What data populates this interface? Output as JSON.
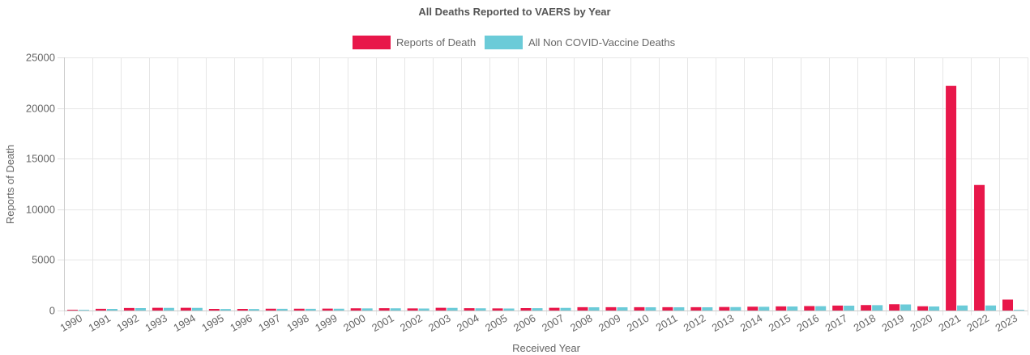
{
  "chart_data": {
    "type": "bar",
    "title": "All Deaths Reported to VAERS by Year",
    "xlabel": "Received Year",
    "ylabel": "Reports of Death",
    "ylim": [
      0,
      25000
    ],
    "yticks": [
      "0",
      "5000",
      "10000",
      "15000",
      "20000",
      "25000"
    ],
    "grid": true,
    "legend_position": "top",
    "categories": [
      "1990",
      "1991",
      "1992",
      "1993",
      "1994",
      "1995",
      "1996",
      "1997",
      "1998",
      "1999",
      "2000",
      "2001",
      "2002",
      "2003",
      "2004",
      "2005",
      "2006",
      "2007",
      "2008",
      "2009",
      "2010",
      "2011",
      "2012",
      "2013",
      "2014",
      "2015",
      "2016",
      "2017",
      "2018",
      "2019",
      "2020",
      "2021",
      "2022",
      "2023"
    ],
    "series": [
      {
        "name": "Reports of Death",
        "color": "#e8174a",
        "values": [
          70,
          170,
          250,
          270,
          270,
          160,
          160,
          180,
          180,
          190,
          220,
          230,
          210,
          270,
          230,
          210,
          240,
          270,
          330,
          330,
          330,
          330,
          330,
          350,
          380,
          410,
          440,
          490,
          540,
          620,
          420,
          22200,
          12400,
          1080
        ]
      },
      {
        "name": "All Non COVID-Vaccine Deaths",
        "color": "#6bcbd8",
        "values": [
          60,
          160,
          240,
          260,
          260,
          150,
          150,
          170,
          170,
          180,
          210,
          220,
          200,
          260,
          220,
          200,
          230,
          260,
          320,
          320,
          320,
          320,
          320,
          340,
          370,
          400,
          430,
          480,
          530,
          600,
          400,
          500,
          500,
          60
        ]
      }
    ]
  }
}
